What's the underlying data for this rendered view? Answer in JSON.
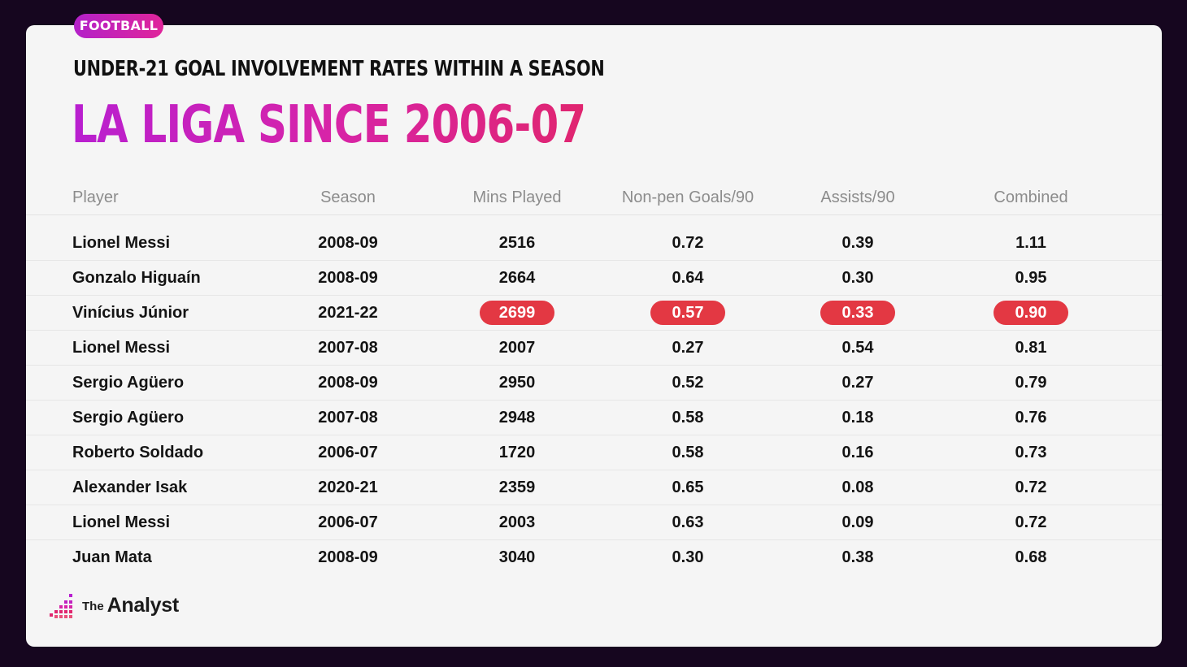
{
  "tag": "FOOTBALL",
  "subtitle": "UNDER-21 GOAL INVOLVEMENT RATES WITHIN A SEASON",
  "title": "LA LIGA SINCE 2006-07",
  "columns": [
    "Player",
    "Season",
    "Mins Played",
    "Non-pen Goals/90",
    "Assists/90",
    "Combined"
  ],
  "highlight_color": "#e33843",
  "rows": [
    {
      "player": "Lionel Messi",
      "season": "2008-09",
      "mins": "2516",
      "goals90": "0.72",
      "assists90": "0.39",
      "combined": "1.11",
      "highlight": false
    },
    {
      "player": "Gonzalo Higuaín",
      "season": "2008-09",
      "mins": "2664",
      "goals90": "0.64",
      "assists90": "0.30",
      "combined": "0.95",
      "highlight": false
    },
    {
      "player": "Vinícius Júnior",
      "season": "2021-22",
      "mins": "2699",
      "goals90": "0.57",
      "assists90": "0.33",
      "combined": "0.90",
      "highlight": true
    },
    {
      "player": "Lionel Messi",
      "season": "2007-08",
      "mins": "2007",
      "goals90": "0.27",
      "assists90": "0.54",
      "combined": "0.81",
      "highlight": false
    },
    {
      "player": "Sergio Agüero",
      "season": "2008-09",
      "mins": "2950",
      "goals90": "0.52",
      "assists90": "0.27",
      "combined": "0.79",
      "highlight": false
    },
    {
      "player": "Sergio Agüero",
      "season": "2007-08",
      "mins": "2948",
      "goals90": "0.58",
      "assists90": "0.18",
      "combined": "0.76",
      "highlight": false
    },
    {
      "player": "Roberto Soldado",
      "season": "2006-07",
      "mins": "1720",
      "goals90": "0.58",
      "assists90": "0.16",
      "combined": "0.73",
      "highlight": false
    },
    {
      "player": "Alexander Isak",
      "season": "2020-21",
      "mins": "2359",
      "goals90": "0.65",
      "assists90": "0.08",
      "combined": "0.72",
      "highlight": false
    },
    {
      "player": "Lionel Messi",
      "season": "2006-07",
      "mins": "2003",
      "goals90": "0.63",
      "assists90": "0.09",
      "combined": "0.72",
      "highlight": false
    },
    {
      "player": "Juan Mata",
      "season": "2008-09",
      "mins": "3040",
      "goals90": "0.30",
      "assists90": "0.38",
      "combined": "0.68",
      "highlight": false
    }
  ],
  "logo": {
    "small": "The",
    "big": "Analyst",
    "icon": "analyst-logo-icon"
  },
  "chart_data": {
    "type": "table",
    "title": "LA LIGA SINCE 2006-07",
    "subtitle": "UNDER-21 GOAL INVOLVEMENT RATES WITHIN A SEASON",
    "columns": [
      "Player",
      "Season",
      "Mins Played",
      "Non-pen Goals/90",
      "Assists/90",
      "Combined"
    ],
    "rows": [
      [
        "Lionel Messi",
        "2008-09",
        2516,
        0.72,
        0.39,
        1.11
      ],
      [
        "Gonzalo Higuaín",
        "2008-09",
        2664,
        0.64,
        0.3,
        0.95
      ],
      [
        "Vinícius Júnior",
        "2021-22",
        2699,
        0.57,
        0.33,
        0.9
      ],
      [
        "Lionel Messi",
        "2007-08",
        2007,
        0.27,
        0.54,
        0.81
      ],
      [
        "Sergio Agüero",
        "2008-09",
        2950,
        0.52,
        0.27,
        0.79
      ],
      [
        "Sergio Agüero",
        "2007-08",
        2948,
        0.58,
        0.18,
        0.76
      ],
      [
        "Roberto Soldado",
        "2006-07",
        1720,
        0.58,
        0.16,
        0.73
      ],
      [
        "Alexander Isak",
        "2020-21",
        2359,
        0.65,
        0.08,
        0.72
      ],
      [
        "Lionel Messi",
        "2006-07",
        2003,
        0.63,
        0.09,
        0.72
      ],
      [
        "Juan Mata",
        "2008-09",
        3040,
        0.3,
        0.38,
        0.68
      ]
    ],
    "highlighted_row": "Vinícius Júnior"
  }
}
